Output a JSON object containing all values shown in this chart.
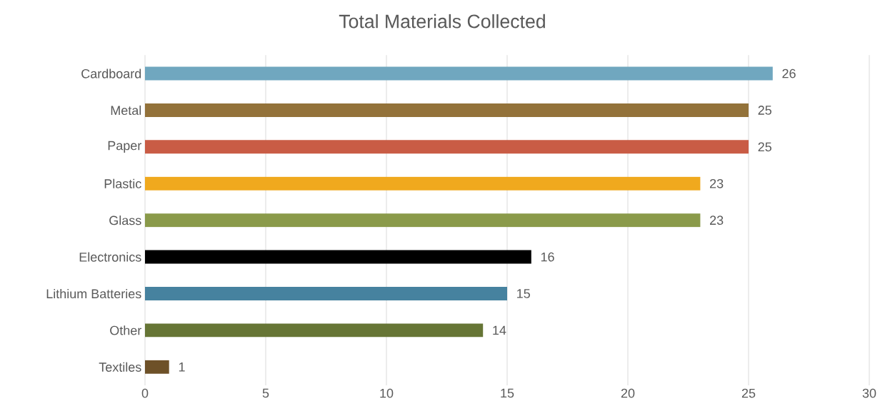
{
  "chart_data": {
    "type": "bar",
    "orientation": "horizontal",
    "title": "Total Materials Collected",
    "categories": [
      "Cardboard",
      "Metal",
      "Paper",
      "Plastic",
      "Glass",
      "Electronics",
      "Lithium Batteries",
      "Other",
      "Textiles"
    ],
    "values": [
      26,
      25,
      25,
      23,
      23,
      16,
      15,
      14,
      1
    ],
    "colors": [
      "#70a7bf",
      "#93723a",
      "#c95c45",
      "#f0a91e",
      "#8a9a4a",
      "#000000",
      "#46829f",
      "#667535",
      "#6e5128"
    ],
    "xlim": [
      0,
      30
    ],
    "xticks": [
      0,
      5,
      10,
      15,
      20,
      25,
      30
    ],
    "grid": "x",
    "data_labels": true
  }
}
